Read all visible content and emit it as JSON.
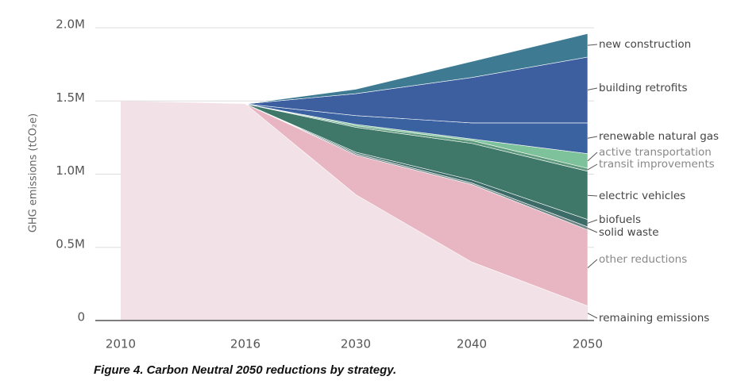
{
  "chart_data": {
    "type": "stacked-area",
    "caption": "Figure 4. Carbon Neutral 2050 reductions by strategy.",
    "y_label": "GHG emissions (tCO₂e)",
    "categories": [
      "2010",
      "2016",
      "2030",
      "2040",
      "2050"
    ],
    "ylim": [
      0,
      2000000
    ],
    "yticks": [
      0,
      {
        "value": 500000,
        "label": "0.5M"
      },
      {
        "value": 1000000,
        "label": "1.0M"
      },
      {
        "value": 1500000,
        "label": "1.5M"
      },
      {
        "value": 2000000,
        "label": "2.0M"
      }
    ],
    "grid": true,
    "series": [
      {
        "name": "remaining emissions",
        "color": "#f3e1e8",
        "values": [
          1500000,
          1480000,
          860000,
          400000,
          100000
        ]
      },
      {
        "name": "other reductions",
        "color": "#e8b6c2",
        "values": [
          0,
          0,
          270000,
          530000,
          520000
        ]
      },
      {
        "name": "solid waste",
        "color": "#6b8585",
        "values": [
          0,
          0,
          10000,
          10000,
          20000
        ]
      },
      {
        "name": "biofuels",
        "color": "#3c6b68",
        "values": [
          0,
          0,
          10000,
          20000,
          50000
        ]
      },
      {
        "name": "electric vehicles",
        "color": "#3f7868",
        "values": [
          0,
          0,
          170000,
          250000,
          330000
        ]
      },
      {
        "name": "transit improvements",
        "color": "#5f9a7e",
        "values": [
          0,
          0,
          10000,
          20000,
          20000
        ]
      },
      {
        "name": "active transportation",
        "color": "#7dc29b",
        "values": [
          0,
          0,
          10000,
          10000,
          100000
        ]
      },
      {
        "name": "renewable natural gas",
        "color": "#3b62a0",
        "values": [
          0,
          0,
          60000,
          110000,
          210000
        ]
      },
      {
        "name": "building retrofits",
        "color": "#3d5f9f",
        "values": [
          0,
          0,
          150000,
          310000,
          450000
        ]
      },
      {
        "name": "new construction",
        "color": "#3e7b93",
        "values": [
          0,
          0,
          30000,
          110000,
          160000
        ]
      }
    ]
  }
}
